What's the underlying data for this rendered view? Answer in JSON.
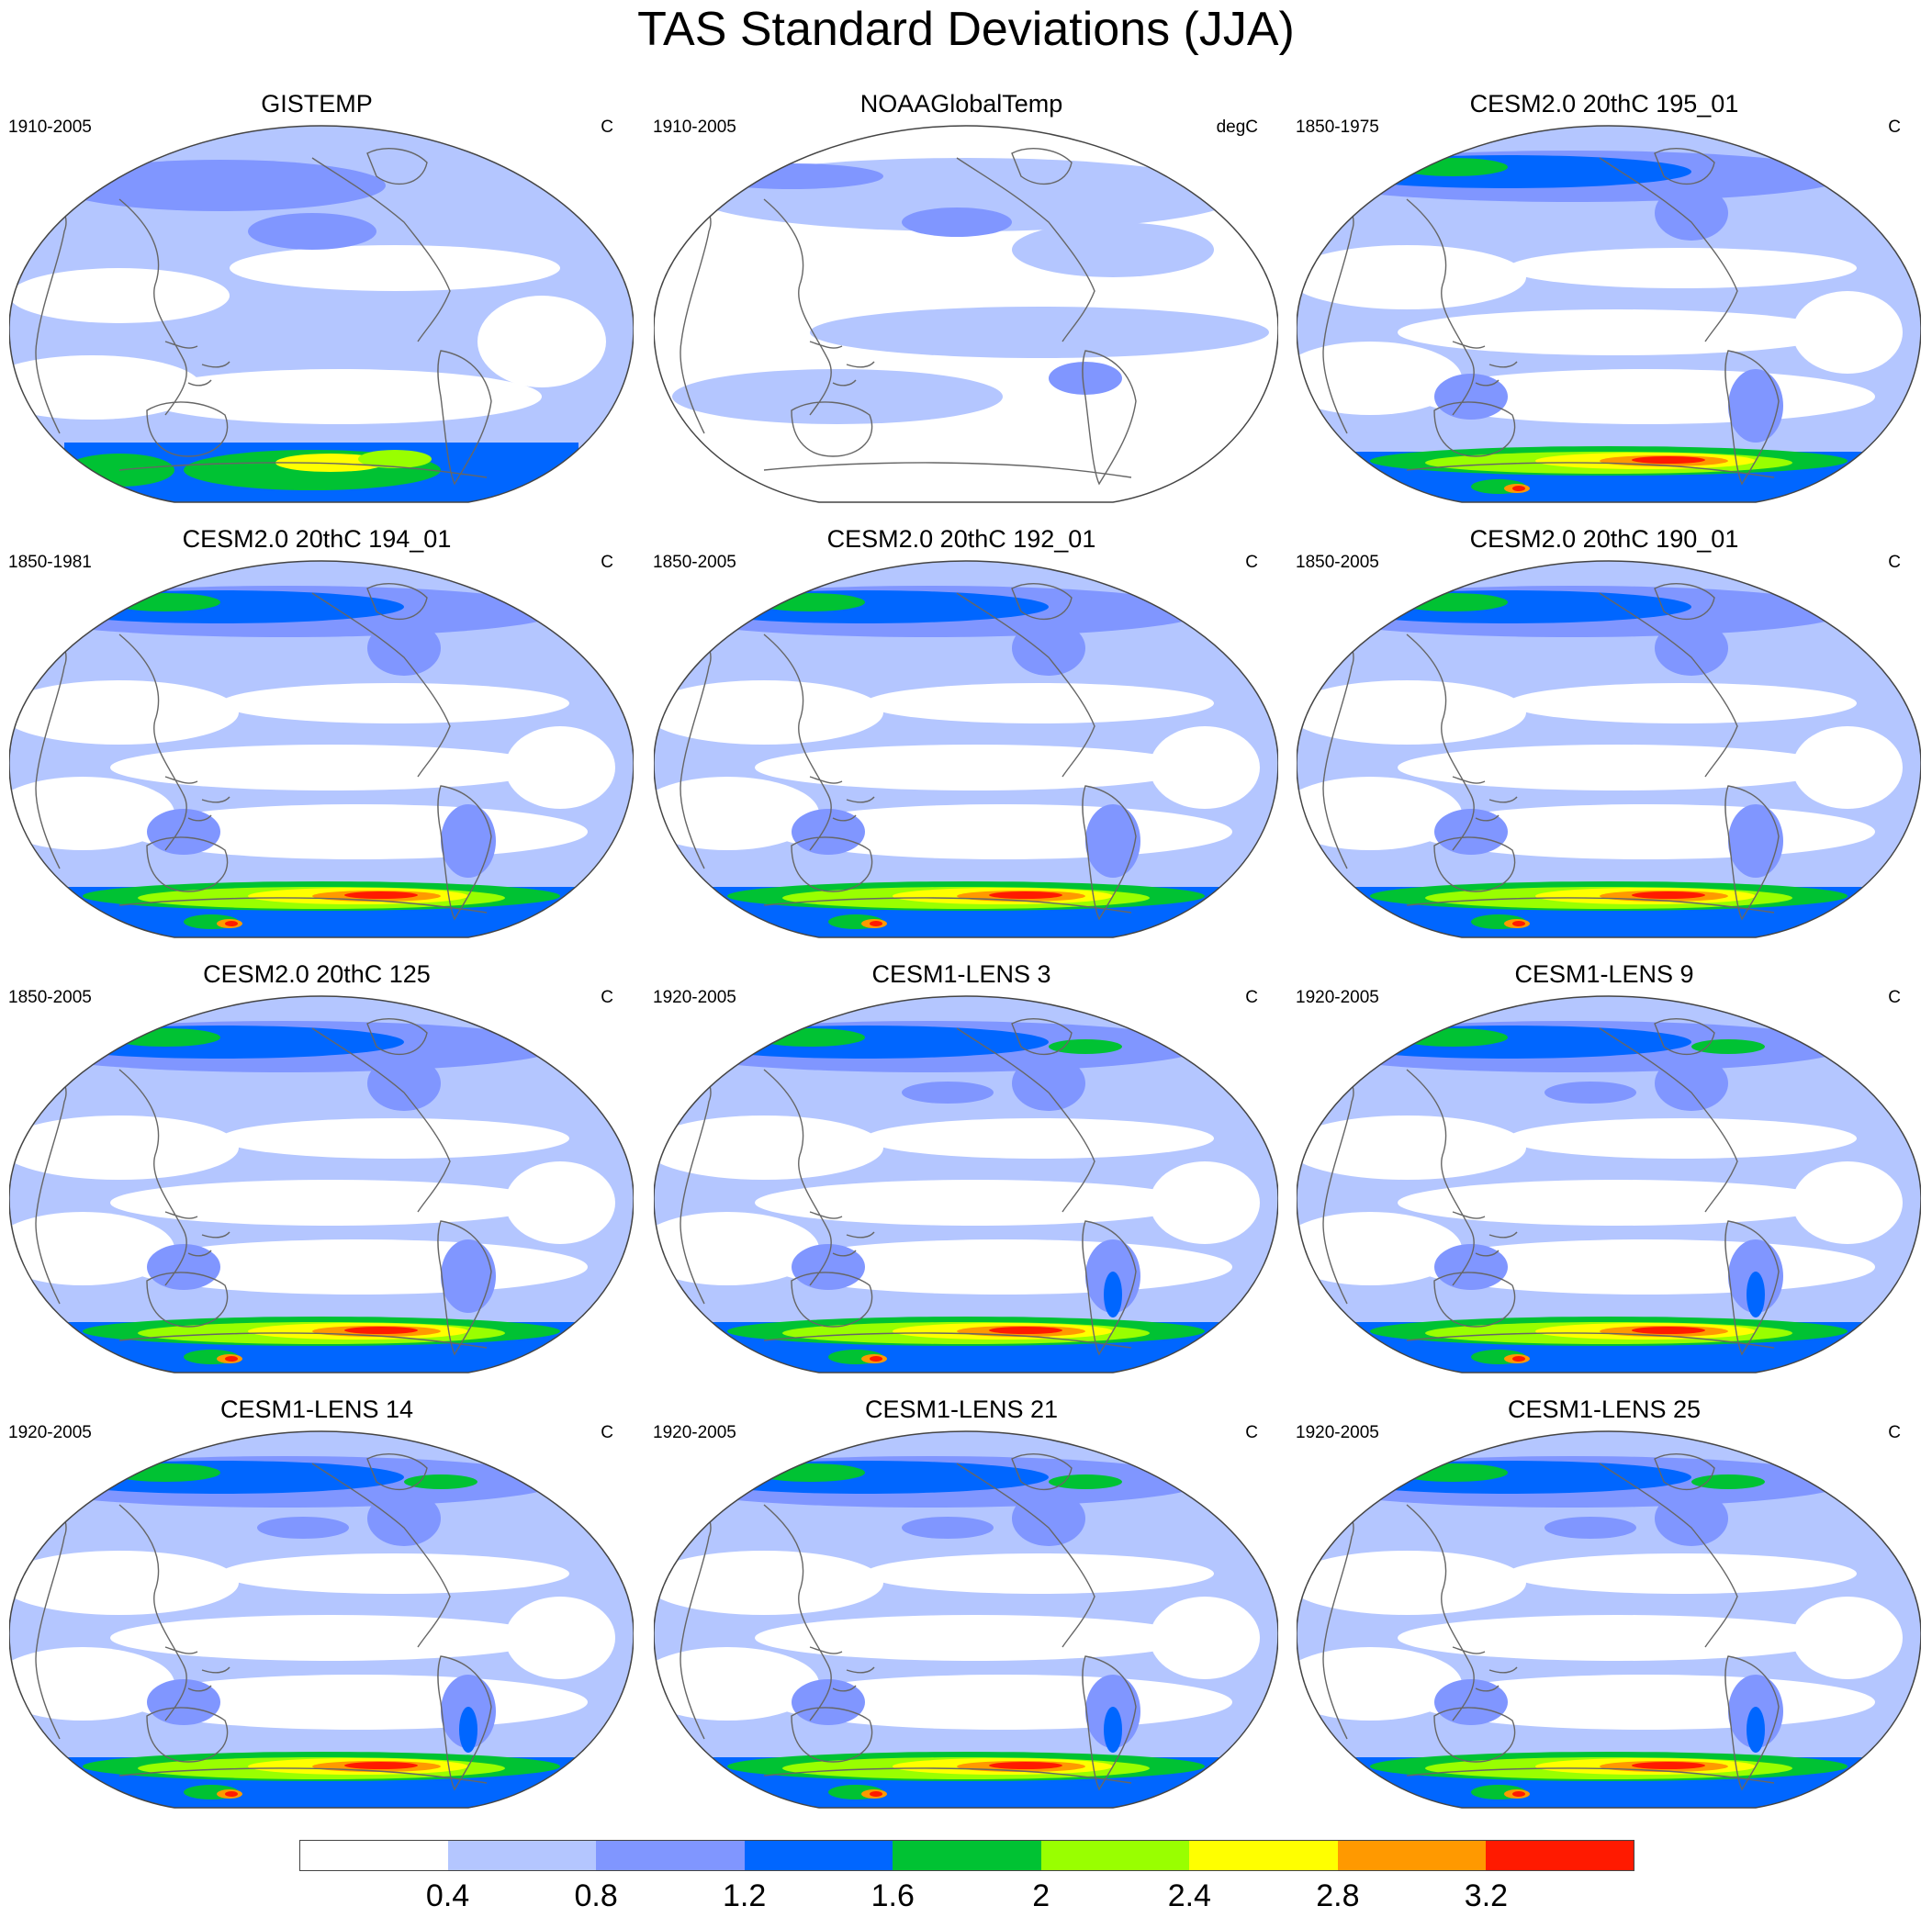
{
  "title": "TAS Standard Deviations (JJA)",
  "colors": {
    "levels": [
      "#ffffff",
      "#b4c6ff",
      "#8096ff",
      "#0066ff",
      "#00c233",
      "#99ff00",
      "#ffff00",
      "#ff9900",
      "#ff1a00"
    ],
    "coastline": "#666666",
    "border": "#444444"
  },
  "panels": [
    {
      "title": "GISTEMP",
      "period": "1910-2005",
      "units": "C",
      "variant": "gistemp"
    },
    {
      "title": "NOAAGlobalTemp",
      "period": "1910-2005",
      "units": "degC",
      "variant": "noaa"
    },
    {
      "title": "CESM2.0 20thC 195_01",
      "period": "1850-1975",
      "units": "C",
      "variant": "cesm2"
    },
    {
      "title": "CESM2.0 20thC 194_01",
      "period": "1850-1981",
      "units": "C",
      "variant": "cesm2"
    },
    {
      "title": "CESM2.0 20thC 192_01",
      "period": "1850-2005",
      "units": "C",
      "variant": "cesm2"
    },
    {
      "title": "CESM2.0 20thC 190_01",
      "period": "1850-2005",
      "units": "C",
      "variant": "cesm2"
    },
    {
      "title": "CESM2.0 20thC 125",
      "period": "1850-2005",
      "units": "C",
      "variant": "cesm2"
    },
    {
      "title": "CESM1-LENS 3",
      "period": "1920-2005",
      "units": "C",
      "variant": "lens"
    },
    {
      "title": "CESM1-LENS 9",
      "period": "1920-2005",
      "units": "C",
      "variant": "lens"
    },
    {
      "title": "CESM1-LENS 14",
      "period": "1920-2005",
      "units": "C",
      "variant": "lens"
    },
    {
      "title": "CESM1-LENS 21",
      "period": "1920-2005",
      "units": "C",
      "variant": "lens"
    },
    {
      "title": "CESM1-LENS 25",
      "period": "1920-2005",
      "units": "C",
      "variant": "lens"
    }
  ],
  "colorbar": {
    "labels": [
      "0.4",
      "0.8",
      "1.2",
      "1.6",
      "2",
      "2.4",
      "2.8",
      "3.2"
    ]
  }
}
